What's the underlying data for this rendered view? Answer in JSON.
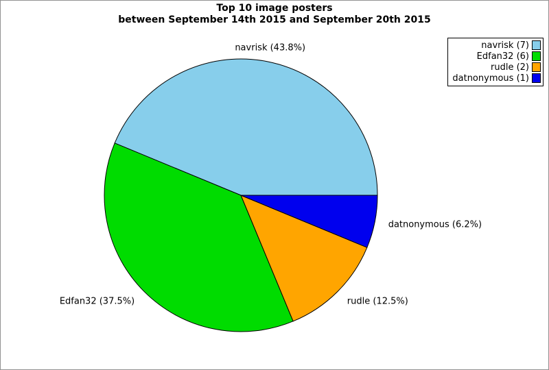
{
  "title": {
    "line1": "Top 10 image posters",
    "line2": "between September 14th 2015 and September 20th 2015"
  },
  "canvas": {
    "background": "#FFFFFF",
    "border_color": "#929292"
  },
  "chart_data": {
    "type": "pie",
    "title": "Top 10 image posters between September 14th 2015 and September 20th 2015",
    "start_angle_deg": 0,
    "direction": "counterclockwise",
    "legend_position": "top-right",
    "wedge_edge_color": "#000000",
    "slices": [
      {
        "name": "navrisk",
        "count": 7,
        "percent": 43.8,
        "label": "navrisk (43.8%)",
        "legend_label": "navrisk (7)",
        "color": "#87CEEB"
      },
      {
        "name": "Edfan32",
        "count": 6,
        "percent": 37.5,
        "label": "Edfan32 (37.5%)",
        "legend_label": "Edfan32 (6)",
        "color": "#00DC00"
      },
      {
        "name": "rudle",
        "count": 2,
        "percent": 12.5,
        "label": "rudle (12.5%)",
        "legend_label": "rudle (2)",
        "color": "#FFA500"
      },
      {
        "name": "datnonymous",
        "count": 1,
        "percent": 6.2,
        "label": "datnonymous (6.2%)",
        "legend_label": "datnonymous (1)",
        "color": "#0000EE"
      }
    ]
  }
}
